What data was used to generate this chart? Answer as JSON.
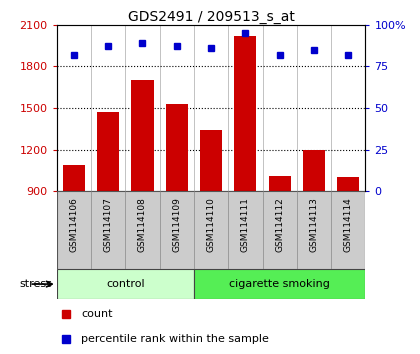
{
  "title": "GDS2491 / 209513_s_at",
  "samples": [
    "GSM114106",
    "GSM114107",
    "GSM114108",
    "GSM114109",
    "GSM114110",
    "GSM114111",
    "GSM114112",
    "GSM114113",
    "GSM114114"
  ],
  "counts": [
    1090,
    1470,
    1700,
    1530,
    1340,
    2020,
    1010,
    1200,
    1000
  ],
  "percentile_ranks": [
    82,
    87,
    89,
    87,
    86,
    95,
    82,
    85,
    82
  ],
  "ylim_left": [
    900,
    2100
  ],
  "ylim_right": [
    0,
    100
  ],
  "yticks_left": [
    900,
    1200,
    1500,
    1800,
    2100
  ],
  "yticks_right": [
    0,
    25,
    50,
    75,
    100
  ],
  "bar_color": "#cc0000",
  "dot_color": "#0000cc",
  "control_samples": 4,
  "group_labels": [
    "control",
    "cigarette smoking"
  ],
  "stress_label": "stress",
  "legend_count": "count",
  "legend_pct": "percentile rank within the sample",
  "control_bg": "#ccffcc",
  "smoking_bg": "#55ee55",
  "header_bg": "#cccccc",
  "tick_color_left": "#cc0000",
  "tick_color_right": "#0000cc",
  "fig_width": 4.2,
  "fig_height": 3.54
}
